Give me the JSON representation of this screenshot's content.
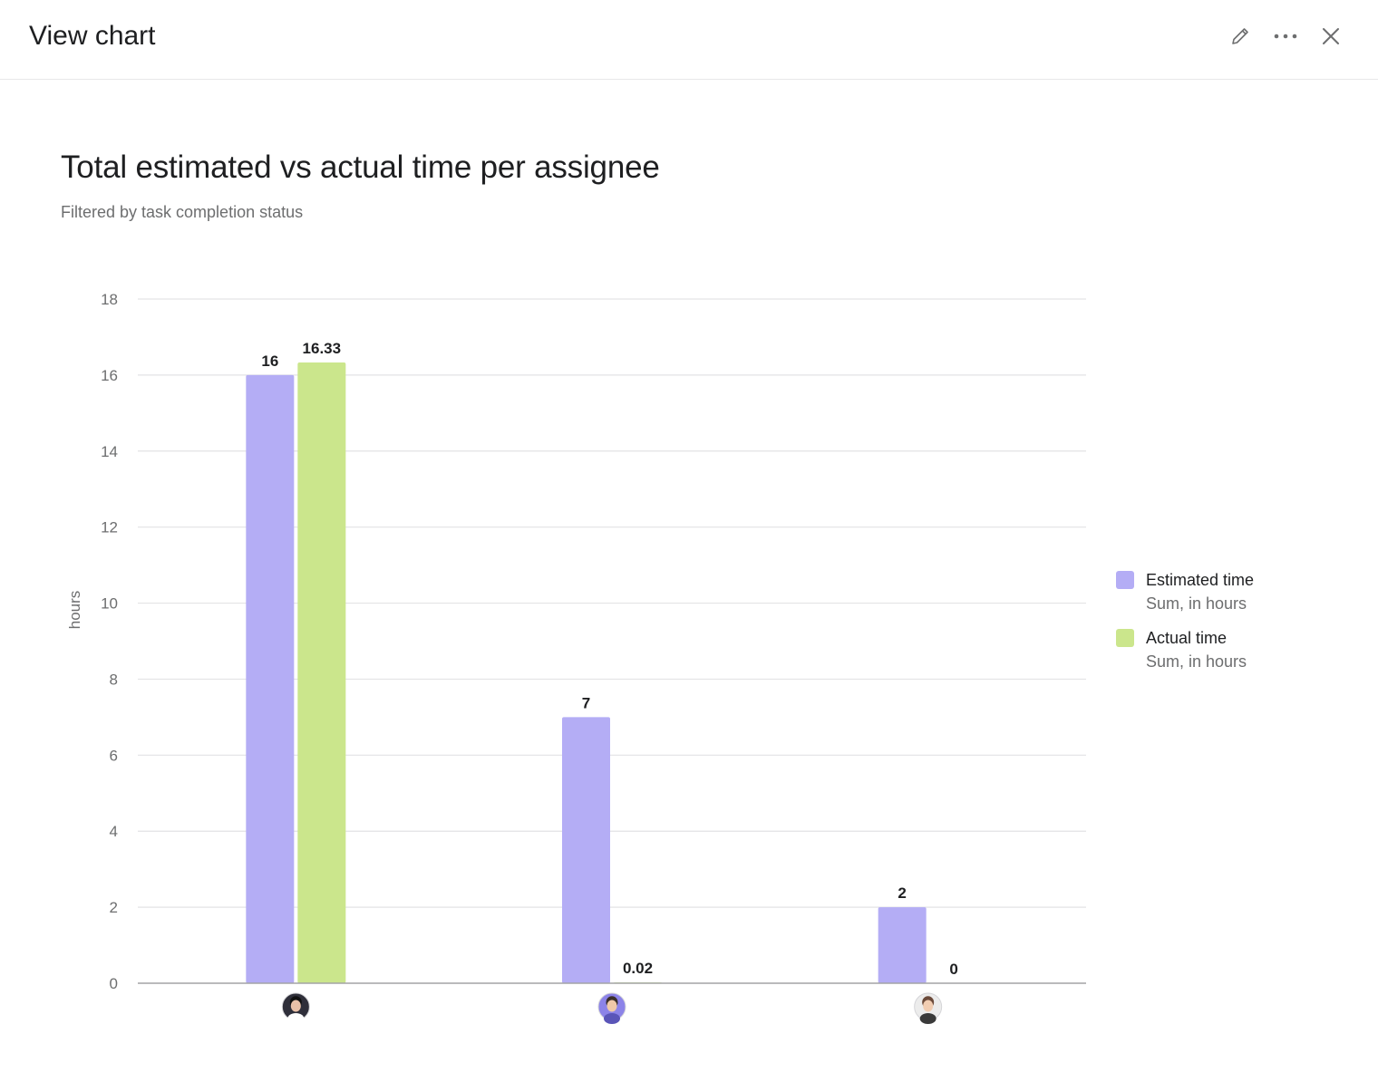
{
  "header": {
    "title": "View chart",
    "actions": [
      {
        "name": "edit",
        "icon": "pencil-icon"
      },
      {
        "name": "more",
        "icon": "more-dots-icon"
      },
      {
        "name": "close",
        "icon": "close-icon"
      }
    ]
  },
  "colors": {
    "estimated": "#b4adf5",
    "actual": "#cbe68c",
    "gridline": "#e3e3e5",
    "baseline": "#a3a3a6",
    "tick_text": "#6d6e6f",
    "value_text": "#1e1f21"
  },
  "chart_data": {
    "type": "bar",
    "title": "Total estimated vs actual time per assignee",
    "subtitle": "Filtered by task completion status",
    "xlabel": "",
    "ylabel": "hours",
    "ylim": [
      0,
      18
    ],
    "yticks": [
      0,
      2,
      4,
      6,
      8,
      10,
      12,
      14,
      16,
      18
    ],
    "grid": true,
    "legend_position": "right",
    "categories": [
      "assignee-1",
      "assignee-2",
      "assignee-3"
    ],
    "category_avatars": [
      "avatar-woman-dark-hair",
      "avatar-man-purple-bg",
      "avatar-man-light-bg"
    ],
    "series": [
      {
        "name": "Estimated time",
        "description": "Sum, in hours",
        "values": [
          16,
          7,
          2
        ],
        "labels": [
          "16",
          "7",
          "2"
        ]
      },
      {
        "name": "Actual time",
        "description": "Sum, in hours",
        "values": [
          16.33,
          0.02,
          0
        ],
        "labels": [
          "16.33",
          "0.02",
          "0"
        ]
      }
    ]
  }
}
